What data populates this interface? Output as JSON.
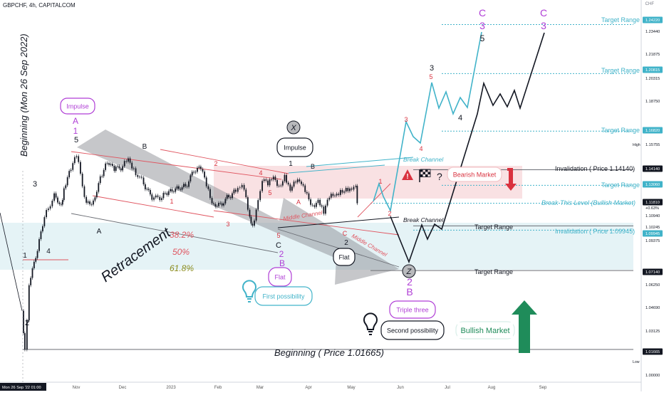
{
  "header": {
    "symbol": "GBPCHF, 4h, CAPITALCOM",
    "currency": "CHF"
  },
  "chart_data": {
    "type": "candlestick",
    "symbol": "GBPCHF",
    "timeframe": "4h",
    "source": "CAPITALCOM",
    "x_tick_labels": [
      "Mon 26 Sep '22  01:00",
      "Nov",
      "Dec",
      "2023",
      "Feb",
      "Mar",
      "Apr",
      "May",
      "Jun",
      "Jul",
      "Aug",
      "Sep"
    ],
    "y_tick_labels": [
      "1.24220",
      "1.23440",
      "1.21875",
      "1.20815",
      "1.20315",
      "1.18750",
      "1.16820",
      "1.15755",
      "High",
      "1.14140",
      "1.13060",
      "1.11810",
      "+0.63%",
      "1.10940",
      "1.10245",
      "1.09945",
      "1.09375",
      "1.07140",
      "1.06250",
      "1.04690",
      "1.03125",
      "1.01665",
      "Low",
      "1.00000"
    ],
    "y_range": [
      0.9994,
      1.2525
    ],
    "price_series": [
      {
        "x": "Sep 26",
        "y": 1.0435
      },
      {
        "x": "Sep 28",
        "y": 1.0166
      },
      {
        "x": "Oct 1",
        "y": 1.0612
      },
      {
        "x": "Oct 7",
        "y": 1.085
      },
      {
        "x": "Oct 12",
        "y": 1.1085
      },
      {
        "x": "Oct 19",
        "y": 1.125
      },
      {
        "x": "Oct 24",
        "y": 1.1172
      },
      {
        "x": "Oct 26",
        "y": 1.1285
      },
      {
        "x": "Oct 31",
        "y": 1.1413
      },
      {
        "x": "Nov 4",
        "y": 1.1508
      },
      {
        "x": "Nov 11",
        "y": 1.1185
      },
      {
        "x": "Nov 16",
        "y": 1.12
      },
      {
        "x": "Nov 21",
        "y": 1.1368
      },
      {
        "x": "Nov 26",
        "y": 1.146
      },
      {
        "x": "Dec 1",
        "y": 1.1406
      },
      {
        "x": "Dec 7",
        "y": 1.1438
      },
      {
        "x": "Dec 11",
        "y": 1.1493
      },
      {
        "x": "Dec 15",
        "y": 1.1424
      },
      {
        "x": "Dec 22",
        "y": 1.1313
      },
      {
        "x": "Dec 28",
        "y": 1.1206
      },
      {
        "x": "Jan 4",
        "y": 1.1217
      },
      {
        "x": "Jan 9",
        "y": 1.1265
      },
      {
        "x": "Jan 15",
        "y": 1.1299
      },
      {
        "x": "Jan 21",
        "y": 1.1299
      },
      {
        "x": "Jan 27",
        "y": 1.1395
      },
      {
        "x": "Feb 1",
        "y": 1.1419
      },
      {
        "x": "Feb 5",
        "y": 1.1299
      },
      {
        "x": "Feb 9",
        "y": 1.1181
      },
      {
        "x": "Feb 15",
        "y": 1.1181
      },
      {
        "x": "Feb 21",
        "y": 1.1223
      },
      {
        "x": "Feb 26",
        "y": 1.1261
      },
      {
        "x": "Mar 1",
        "y": 1.1291
      },
      {
        "x": "Mar 4",
        "y": 1.1276
      },
      {
        "x": "Mar 8",
        "y": 1.1088
      },
      {
        "x": "Mar 10",
        "y": 1.1026
      },
      {
        "x": "Mar 14",
        "y": 1.1203
      },
      {
        "x": "Mar 17",
        "y": 1.1336
      },
      {
        "x": "Mar 21",
        "y": 1.1306
      },
      {
        "x": "Mar 25",
        "y": 1.1366
      },
      {
        "x": "Mar 29",
        "y": 1.1303
      },
      {
        "x": "Apr 2",
        "y": 1.1378
      },
      {
        "x": "Apr 6",
        "y": 1.1269
      },
      {
        "x": "Apr 10",
        "y": 1.1326
      },
      {
        "x": "Apr 14",
        "y": 1.1314
      },
      {
        "x": "Apr 18",
        "y": 1.125
      },
      {
        "x": "Apr 22",
        "y": 1.1168
      },
      {
        "x": "Apr 26",
        "y": 1.1205
      },
      {
        "x": "Apr 30",
        "y": 1.1109
      },
      {
        "x": "May 4",
        "y": 1.122
      },
      {
        "x": "May 8",
        "y": 1.1235
      },
      {
        "x": "May 12",
        "y": 1.1273
      },
      {
        "x": "May 16",
        "y": 1.1288
      },
      {
        "x": "May 20",
        "y": 1.1276
      },
      {
        "x": "May 23",
        "y": 1.1302
      },
      {
        "x": "May 24",
        "y": 1.1181
      }
    ],
    "horizontal_levels": [
      {
        "label": "Target Range",
        "price": 1.2422
      },
      {
        "label": "Target Range",
        "price": 1.20815
      },
      {
        "label": "Target Range",
        "price": 1.1682
      },
      {
        "label": "Invalidation ( Price 1.14140)",
        "price": 1.1414
      },
      {
        "label": "Target Range",
        "price": 1.1306
      },
      {
        "label": "Break This Level (Bullish Market)",
        "price": 1.1181
      },
      {
        "label": "Target Range",
        "price": 1.10245
      },
      {
        "label": "Invalidation ( Price 1.09945)",
        "price": 1.09945
      },
      {
        "label": "Target Range",
        "price": 1.0714
      },
      {
        "label": "Beginning ( Price 1.01665)",
        "price": 1.01665
      }
    ],
    "fib_levels": [
      "38.2%",
      "50%",
      "61.8%"
    ],
    "annotations": {
      "left_vertical": "Beginning (Mon 26 Sep 2022)",
      "retracement": "Retracement",
      "impulse": "Impulse",
      "flat": "Flat",
      "x_label": "X",
      "z_label": "Z",
      "bearish_market": "Bearish Market",
      "bullish_market": "Bullish Market",
      "first_possibility": "First possibility",
      "second_possibility": "Second possibility",
      "triple_three": "Triple three",
      "break_channel": "Break Channel",
      "middle_channel": "Middle Channel",
      "question": "?",
      "wave_labels": {
        "A": "A",
        "B": "B",
        "C": "C",
        "1": "1",
        "2": "2",
        "3": "3",
        "4": "4",
        "5": "5"
      }
    }
  }
}
